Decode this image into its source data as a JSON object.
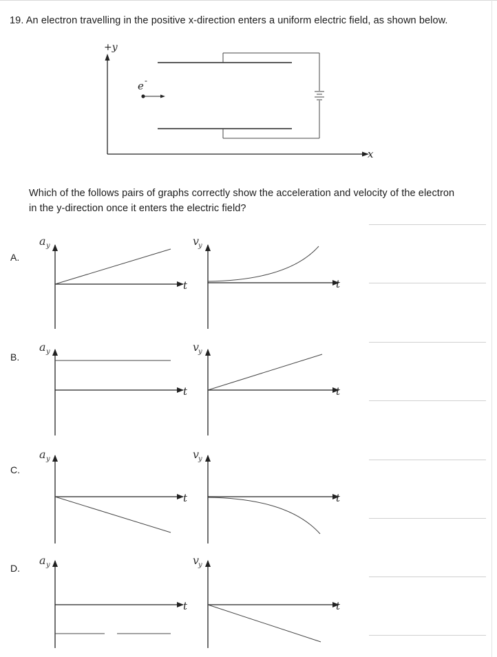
{
  "question": {
    "number_and_text": "19. An electron travelling in the positive x-direction enters a uniform electric field, as shown below.",
    "prompt_line1": "Which of the follows pairs of graphs correctly show the acceleration and velocity of the electron",
    "prompt_line2": "in the y-direction once it enters the electric field?"
  },
  "diagram": {
    "y_axis_label": "+y",
    "x_axis_label": "x",
    "particle_label": "e",
    "particle_charge": "-"
  },
  "graph_labels": {
    "accel_main": "a",
    "accel_sub": "y",
    "vel_main": "v",
    "vel_sub": "y",
    "time": "t"
  },
  "options": [
    {
      "letter": "A.",
      "acceleration": "increasing linear from zero",
      "velocity": "increasing curve from zero"
    },
    {
      "letter": "B.",
      "acceleration": "constant positive",
      "velocity": "increasing linear from zero"
    },
    {
      "letter": "C.",
      "acceleration": "decreasing linear from zero",
      "velocity": "decreasing curve from zero"
    },
    {
      "letter": "D.",
      "acceleration": "constant negative",
      "velocity": "decreasing linear from zero"
    }
  ]
}
